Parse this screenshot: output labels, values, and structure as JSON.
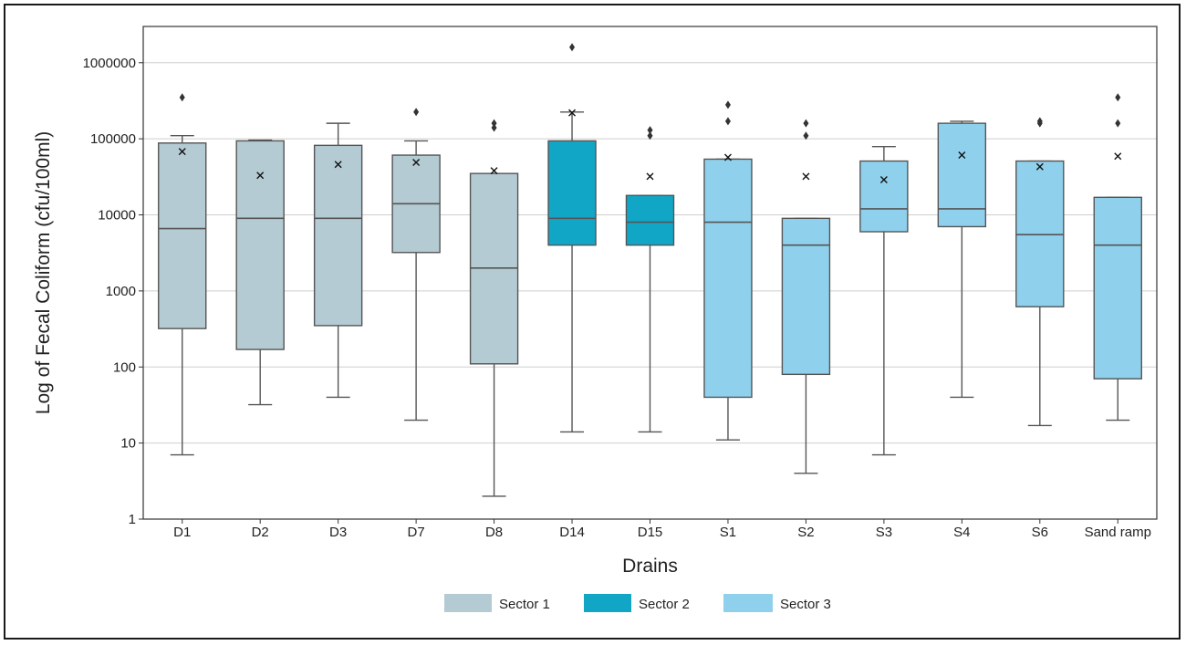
{
  "chart_data": {
    "type": "box",
    "title": "",
    "xlabel": "Drains",
    "ylabel": "Log of Fecal Coliform (cfu/100ml)",
    "yscale": "log",
    "ylim": [
      1,
      3000000
    ],
    "yticks": [
      "1",
      "10",
      "100",
      "1000",
      "10000",
      "100000",
      "1000000"
    ],
    "grid": "horizontal",
    "legend_position": "bottom-center",
    "categories": [
      "D1",
      "D2",
      "D3",
      "D7",
      "D8",
      "D14",
      "D15",
      "S1",
      "S2",
      "S3",
      "S4",
      "S6",
      "Sand ramp"
    ],
    "groups": [
      {
        "name": "Sector 1",
        "color": "#b4cbd3"
      },
      {
        "name": "Sector 2",
        "color": "#12a6c6"
      },
      {
        "name": "Sector 3",
        "color": "#8fd1ec"
      }
    ],
    "boxes": [
      {
        "category": "D1",
        "group": "Sector 1",
        "whisker_low": 7,
        "q1": 320,
        "median": 6600,
        "q3": 88000,
        "whisker_high": 110000,
        "mean": 68000,
        "outliers": [
          350000
        ]
      },
      {
        "category": "D2",
        "group": "Sector 1",
        "whisker_low": 32,
        "q1": 170,
        "median": 9000,
        "q3": 94000,
        "whisker_high": 96000,
        "mean": 33000,
        "outliers": []
      },
      {
        "category": "D3",
        "group": "Sector 1",
        "whisker_low": 40,
        "q1": 350,
        "median": 9000,
        "q3": 82000,
        "whisker_high": 160000,
        "mean": 46000,
        "outliers": []
      },
      {
        "category": "D7",
        "group": "Sector 1",
        "whisker_low": 20,
        "q1": 3200,
        "median": 14000,
        "q3": 61000,
        "whisker_high": 94000,
        "mean": 49000,
        "outliers": [
          225000
        ]
      },
      {
        "category": "D8",
        "group": "Sector 1",
        "whisker_low": 2,
        "q1": 110,
        "median": 2000,
        "q3": 35000,
        "whisker_high": 35000,
        "mean": 38000,
        "outliers": [
          140000,
          160000
        ]
      },
      {
        "category": "D14",
        "group": "Sector 2",
        "whisker_low": 14,
        "q1": 4000,
        "median": 9000,
        "q3": 94000,
        "whisker_high": 225000,
        "mean": 220000,
        "outliers": [
          1600000
        ]
      },
      {
        "category": "D15",
        "group": "Sector 2",
        "whisker_low": 14,
        "q1": 4000,
        "median": 8000,
        "q3": 18000,
        "whisker_high": 18000,
        "mean": 32000,
        "outliers": [
          110000,
          130000
        ]
      },
      {
        "category": "S1",
        "group": "Sector 3",
        "whisker_low": 11,
        "q1": 40,
        "median": 8000,
        "q3": 54000,
        "whisker_high": 54000,
        "mean": 57000,
        "outliers": [
          170000,
          280000
        ]
      },
      {
        "category": "S2",
        "group": "Sector 3",
        "whisker_low": 4,
        "q1": 80,
        "median": 4000,
        "q3": 9000,
        "whisker_high": 9000,
        "mean": 32000,
        "outliers": [
          110000,
          160000
        ]
      },
      {
        "category": "S3",
        "group": "Sector 3",
        "whisker_low": 7,
        "q1": 6000,
        "median": 12000,
        "q3": 51000,
        "whisker_high": 79000,
        "mean": 29000,
        "outliers": []
      },
      {
        "category": "S4",
        "group": "Sector 3",
        "whisker_low": 40,
        "q1": 7000,
        "median": 12000,
        "q3": 160000,
        "whisker_high": 170000,
        "mean": 61000,
        "outliers": []
      },
      {
        "category": "S6",
        "group": "Sector 3",
        "whisker_low": 17,
        "q1": 620,
        "median": 5500,
        "q3": 51000,
        "whisker_high": 51000,
        "mean": 43000,
        "outliers": [
          160000,
          170000
        ]
      },
      {
        "category": "Sand ramp",
        "group": "Sector 3",
        "whisker_low": 20,
        "q1": 70,
        "median": 4000,
        "q3": 17000,
        "whisker_high": 17000,
        "mean": 59000,
        "outliers": [
          160000,
          350000
        ]
      }
    ]
  }
}
